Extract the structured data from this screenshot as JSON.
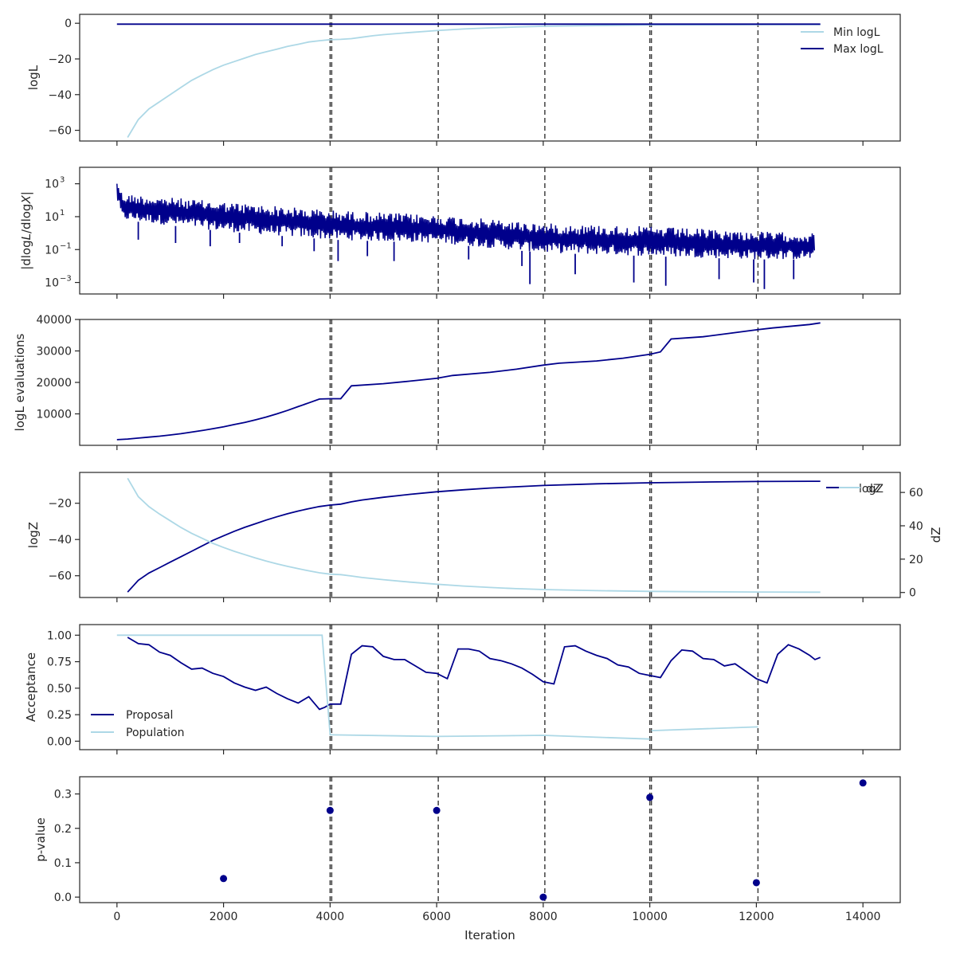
{
  "chart_data": [
    {
      "type": "line",
      "panel": 1,
      "ylabel": "logL",
      "xlim": [
        -700,
        14700
      ],
      "ylim": [
        -66,
        5
      ],
      "yticks": [
        0,
        -20,
        -40,
        -60
      ],
      "legend": {
        "position": "top-right",
        "entries": [
          "Min logL",
          "Max logL"
        ]
      },
      "series": [
        {
          "name": "Min logL",
          "color": "#add8e6",
          "x": [
            200,
            400,
            600,
            800,
            1000,
            1200,
            1400,
            1600,
            1800,
            2000,
            2200,
            2400,
            2600,
            2800,
            3000,
            3200,
            3400,
            3600,
            3800,
            4000,
            4200,
            4400,
            4600,
            4800,
            5000,
            5500,
            6000,
            6500,
            7000,
            7500,
            8000,
            9000,
            10000,
            11000,
            12000,
            13000,
            13200
          ],
          "y": [
            -64,
            -54,
            -48,
            -44,
            -40,
            -36,
            -32,
            -29,
            -26,
            -23.5,
            -21.5,
            -19.5,
            -17.5,
            -16,
            -14.5,
            -13,
            -11.8,
            -10.5,
            -9.8,
            -9.2,
            -9,
            -8.6,
            -7.8,
            -7,
            -6.4,
            -5.2,
            -4.1,
            -3.2,
            -2.6,
            -2.1,
            -1.7,
            -1.3,
            -1.0,
            -0.9,
            -0.8,
            -0.75,
            -0.75
          ]
        },
        {
          "name": "Max logL",
          "color": "#00008b",
          "x": [
            0,
            13200
          ],
          "y": [
            -0.5,
            -0.5
          ]
        }
      ],
      "vlines": [
        4000,
        4030,
        6030,
        8030,
        10000,
        10030,
        12030
      ]
    },
    {
      "type": "line",
      "panel": 2,
      "ylabel": "|dlogL/dlogX|",
      "yscale": "log",
      "xlim": [
        -700,
        14700
      ],
      "ylim": [
        0.0002,
        10000
      ],
      "yticks": [
        1000,
        10,
        0.1,
        0.001
      ],
      "yticklabels": [
        "10",
        "10",
        "10",
        "10"
      ],
      "ytickexp": [
        "3",
        "1",
        "−1",
        "−3"
      ],
      "series": [
        {
          "name": "",
          "color": "#00008b",
          "x_range": [
            0,
            13100
          ],
          "envelope_high_log10": [
            [
              0,
              3.3
            ],
            [
              100,
              2.4
            ],
            [
              2000,
              1.9
            ],
            [
              4000,
              1.4
            ],
            [
              6000,
              1.1
            ],
            [
              8000,
              0.6
            ],
            [
              10000,
              0.4
            ],
            [
              12000,
              0.1
            ],
            [
              13100,
              0.0
            ]
          ],
          "envelope_low_log10": [
            [
              0,
              2.0
            ],
            [
              100,
              0.8
            ],
            [
              2000,
              0.1
            ],
            [
              4000,
              -0.4
            ],
            [
              6000,
              -0.6
            ],
            [
              8000,
              -1.2
            ],
            [
              10000,
              -1.4
            ],
            [
              12000,
              -1.6
            ],
            [
              13100,
              -1.6
            ]
          ],
          "deep_dips": [
            [
              400,
              -0.4
            ],
            [
              1100,
              -0.6
            ],
            [
              1750,
              -0.8
            ],
            [
              2300,
              -0.6
            ],
            [
              3100,
              -0.8
            ],
            [
              3700,
              -1.1
            ],
            [
              4150,
              -1.7
            ],
            [
              4700,
              -1.4
            ],
            [
              5200,
              -1.7
            ],
            [
              6600,
              -1.6
            ],
            [
              7600,
              -2.0
            ],
            [
              7750,
              -3.1
            ],
            [
              8600,
              -2.5
            ],
            [
              9700,
              -3.0
            ],
            [
              10300,
              -3.2
            ],
            [
              11300,
              -2.8
            ],
            [
              11950,
              -3.0
            ],
            [
              12150,
              -3.4
            ],
            [
              12700,
              -2.8
            ]
          ]
        }
      ],
      "vlines": [
        4000,
        4030,
        6030,
        8030,
        10000,
        10030,
        12030
      ]
    },
    {
      "type": "line",
      "panel": 3,
      "ylabel": "logL evaluations",
      "xlim": [
        -700,
        14700
      ],
      "ylim": [
        0,
        40000
      ],
      "yticks": [
        10000,
        20000,
        30000,
        40000
      ],
      "series": [
        {
          "name": "",
          "color": "#00008b",
          "x": [
            0,
            200,
            400,
            600,
            800,
            1000,
            1200,
            1400,
            1600,
            1800,
            2000,
            2200,
            2400,
            2600,
            2800,
            3000,
            3200,
            3400,
            3600,
            3800,
            4000,
            4200,
            4400,
            5000,
            5500,
            6000,
            6300,
            7000,
            7500,
            8000,
            8300,
            9000,
            9500,
            10000,
            10200,
            10400,
            11000,
            11500,
            12000,
            12300,
            13000,
            13200
          ],
          "y": [
            1800,
            2000,
            2300,
            2600,
            2900,
            3300,
            3700,
            4200,
            4700,
            5300,
            5900,
            6600,
            7300,
            8100,
            9000,
            10000,
            11100,
            12300,
            13500,
            14700,
            14800,
            14800,
            18900,
            19600,
            20400,
            21300,
            22200,
            23200,
            24200,
            25500,
            26100,
            26800,
            27700,
            28900,
            29700,
            33800,
            34500,
            35600,
            36700,
            37300,
            38400,
            38900
          ]
        }
      ],
      "vlines": [
        4000,
        4030,
        6030,
        8030,
        10000,
        10030,
        12030
      ]
    },
    {
      "type": "line",
      "panel": 4,
      "ylabel": "logZ",
      "ylabel_right": "dZ",
      "xlim": [
        -700,
        14700
      ],
      "ylim": [
        -72,
        -3
      ],
      "yticks": [
        -20,
        -40,
        -60
      ],
      "ylim_right": [
        -3,
        72
      ],
      "yticks_right": [
        0,
        20,
        40,
        60
      ],
      "legend": {
        "position": "top-right",
        "entries": [
          "logZ",
          "dZ"
        ]
      },
      "series": [
        {
          "name": "logZ",
          "color": "#00008b",
          "x": [
            200,
            400,
            600,
            800,
            1000,
            1200,
            1400,
            1600,
            1800,
            2000,
            2200,
            2400,
            2600,
            2800,
            3000,
            3200,
            3400,
            3600,
            3800,
            4000,
            4200,
            4400,
            4600,
            5000,
            5500,
            6000,
            6500,
            7000,
            7500,
            8000,
            9000,
            10000,
            11000,
            12000,
            13000,
            13200
          ],
          "y": [
            -69,
            -62.5,
            -58.5,
            -55.5,
            -52.5,
            -49.5,
            -46.5,
            -43.5,
            -40.5,
            -38,
            -35.5,
            -33.3,
            -31.3,
            -29.3,
            -27.5,
            -25.8,
            -24.3,
            -23,
            -21.8,
            -21,
            -20.5,
            -19.2,
            -18.2,
            -16.7,
            -15.1,
            -13.7,
            -12.6,
            -11.6,
            -10.9,
            -10.2,
            -9.3,
            -8.7,
            -8.3,
            -8.0,
            -7.9,
            -7.9
          ]
        },
        {
          "name": "dZ",
          "color": "#add8e6",
          "x": [
            200,
            400,
            600,
            800,
            1000,
            1200,
            1400,
            1600,
            1800,
            2000,
            2200,
            2400,
            2600,
            2800,
            3000,
            3200,
            3400,
            3600,
            3800,
            4000,
            4200,
            4400,
            4600,
            5000,
            5500,
            6000,
            6500,
            7000,
            7500,
            8000,
            9000,
            10000,
            11000,
            12000,
            13000,
            13200
          ],
          "y": [
            68.5,
            57.5,
            51.5,
            47,
            43,
            39,
            35.5,
            32.5,
            29.5,
            27,
            24.7,
            22.7,
            20.7,
            18.9,
            17.2,
            15.7,
            14.3,
            13,
            11.8,
            11,
            10.7,
            9.9,
            9,
            7.7,
            6.2,
            5,
            3.9,
            3,
            2.3,
            1.8,
            1.1,
            0.7,
            0.45,
            0.3,
            0.2,
            0.2
          ]
        }
      ],
      "vlines": [
        4000,
        4030,
        6030,
        8030,
        10000,
        10030,
        12030
      ]
    },
    {
      "type": "line",
      "panel": 5,
      "ylabel": "Acceptance",
      "xlim": [
        -700,
        14700
      ],
      "ylim": [
        -0.08,
        1.1
      ],
      "yticks": [
        1.0,
        0.75,
        0.5,
        0.25,
        0.0
      ],
      "yticklabels": [
        "1.00",
        "0.75",
        "0.50",
        "0.25",
        "0.00"
      ],
      "legend": {
        "position": "lower-left",
        "entries": [
          "Proposal",
          "Population"
        ]
      },
      "series": [
        {
          "name": "Proposal",
          "color": "#00008b",
          "x": [
            200,
            400,
            600,
            800,
            1000,
            1200,
            1400,
            1600,
            1800,
            2000,
            2200,
            2400,
            2600,
            2800,
            3000,
            3200,
            3400,
            3600,
            3800,
            3900,
            4000,
            4200,
            4400,
            4600,
            4800,
            5000,
            5200,
            5400,
            5600,
            5800,
            6000,
            6200,
            6400,
            6600,
            6800,
            7000,
            7200,
            7400,
            7600,
            7800,
            8000,
            8200,
            8400,
            8600,
            8800,
            9000,
            9200,
            9400,
            9600,
            9800,
            10000,
            10200,
            10400,
            10600,
            10800,
            11000,
            11200,
            11400,
            11600,
            11800,
            12000,
            12200,
            12400,
            12600,
            12800,
            13000,
            13100,
            13200
          ],
          "y": [
            0.98,
            0.92,
            0.91,
            0.84,
            0.81,
            0.74,
            0.68,
            0.69,
            0.64,
            0.61,
            0.55,
            0.51,
            0.48,
            0.51,
            0.45,
            0.4,
            0.36,
            0.42,
            0.3,
            0.32,
            0.35,
            0.35,
            0.82,
            0.9,
            0.89,
            0.8,
            0.77,
            0.77,
            0.71,
            0.65,
            0.64,
            0.59,
            0.87,
            0.87,
            0.85,
            0.78,
            0.76,
            0.73,
            0.69,
            0.63,
            0.56,
            0.54,
            0.89,
            0.9,
            0.85,
            0.81,
            0.78,
            0.72,
            0.7,
            0.64,
            0.62,
            0.6,
            0.76,
            0.86,
            0.85,
            0.78,
            0.77,
            0.71,
            0.73,
            0.66,
            0.59,
            0.55,
            0.82,
            0.91,
            0.87,
            0.81,
            0.77,
            0.79
          ]
        },
        {
          "name": "Population",
          "color": "#add8e6",
          "segments": [
            {
              "x": [
                0,
                3850,
                4000,
                4030
              ],
              "y": [
                1.0,
                1.0,
                0.06,
                0.06
              ]
            },
            {
              "x": [
                4030,
                6000,
                8000,
                10000
              ],
              "y": [
                0.06,
                0.045,
                0.055,
                0.02
              ]
            },
            {
              "x": [
                10030,
                12030
              ],
              "y": [
                0.1,
                0.135
              ]
            }
          ]
        }
      ],
      "vlines": [
        4000,
        4030,
        6030,
        8030,
        10000,
        10030,
        12030
      ]
    },
    {
      "type": "scatter",
      "panel": 6,
      "ylabel": "p-value",
      "xlabel": "Iteration",
      "xlim": [
        -700,
        14700
      ],
      "ylim": [
        -0.016,
        0.35
      ],
      "yticks": [
        0.0,
        0.1,
        0.2,
        0.3
      ],
      "yticklabels": [
        "0.0",
        "0.1",
        "0.2",
        "0.3"
      ],
      "xticks": [
        0,
        2000,
        4000,
        6000,
        8000,
        10000,
        12000,
        14000
      ],
      "xticklabels": [
        "0",
        "2000",
        "4000",
        "6000",
        "8000",
        "10000",
        "12000",
        "14000"
      ],
      "series": [
        {
          "name": "",
          "color": "#00008b",
          "x": [
            2000,
            4000,
            6000,
            8000,
            10000,
            12000,
            14000
          ],
          "y": [
            0.054,
            0.252,
            0.252,
            0.0,
            0.29,
            0.042,
            0.332
          ]
        }
      ],
      "vlines": [
        4000,
        4030,
        6030,
        8030,
        10000,
        10030,
        12030
      ]
    }
  ]
}
